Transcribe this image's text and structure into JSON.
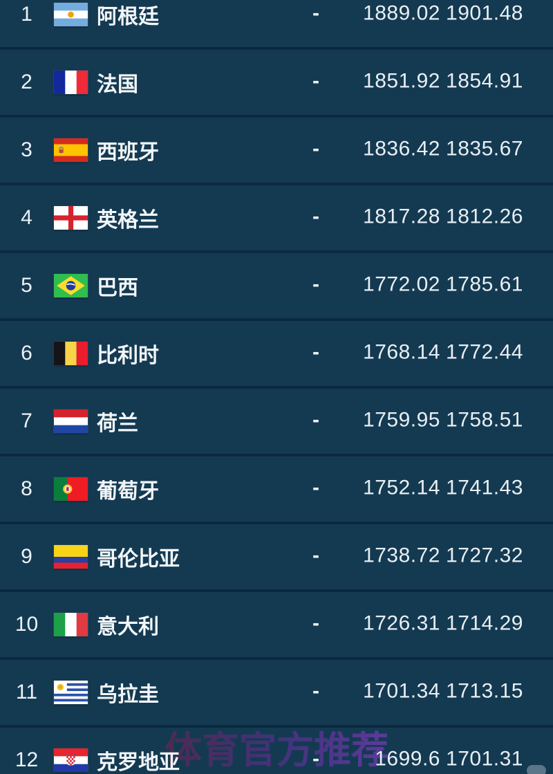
{
  "colors": {
    "background": "#143A52",
    "row_separator": "#0A2A40",
    "text": "#EDF2F6",
    "watermark": "#7A2A96"
  },
  "watermark": {
    "text": "体育官方推荐"
  },
  "table": {
    "rows": [
      {
        "rank": "1",
        "flag": "argentina",
        "country": "阿根廷",
        "change": "-",
        "points": "1889.02",
        "previous": "1901.48"
      },
      {
        "rank": "2",
        "flag": "france",
        "country": "法国",
        "change": "-",
        "points": "1851.92",
        "previous": "1854.91"
      },
      {
        "rank": "3",
        "flag": "spain",
        "country": "西班牙",
        "change": "-",
        "points": "1836.42",
        "previous": "1835.67"
      },
      {
        "rank": "4",
        "flag": "england",
        "country": "英格兰",
        "change": "-",
        "points": "1817.28",
        "previous": "1812.26"
      },
      {
        "rank": "5",
        "flag": "brazil",
        "country": "巴西",
        "change": "-",
        "points": "1772.02",
        "previous": "1785.61"
      },
      {
        "rank": "6",
        "flag": "belgium",
        "country": "比利时",
        "change": "-",
        "points": "1768.14",
        "previous": "1772.44"
      },
      {
        "rank": "7",
        "flag": "netherlands",
        "country": "荷兰",
        "change": "-",
        "points": "1759.95",
        "previous": "1758.51"
      },
      {
        "rank": "8",
        "flag": "portugal",
        "country": "葡萄牙",
        "change": "-",
        "points": "1752.14",
        "previous": "1741.43"
      },
      {
        "rank": "9",
        "flag": "colombia",
        "country": "哥伦比亚",
        "change": "-",
        "points": "1738.72",
        "previous": "1727.32"
      },
      {
        "rank": "10",
        "flag": "italy",
        "country": "意大利",
        "change": "-",
        "points": "1726.31",
        "previous": "1714.29"
      },
      {
        "rank": "11",
        "flag": "uruguay",
        "country": "乌拉圭",
        "change": "-",
        "points": "1701.34",
        "previous": "1713.15"
      },
      {
        "rank": "12",
        "flag": "croatia",
        "country": "克罗地亚",
        "change": "-",
        "points": "1699.6",
        "previous": "1701.31"
      }
    ]
  }
}
